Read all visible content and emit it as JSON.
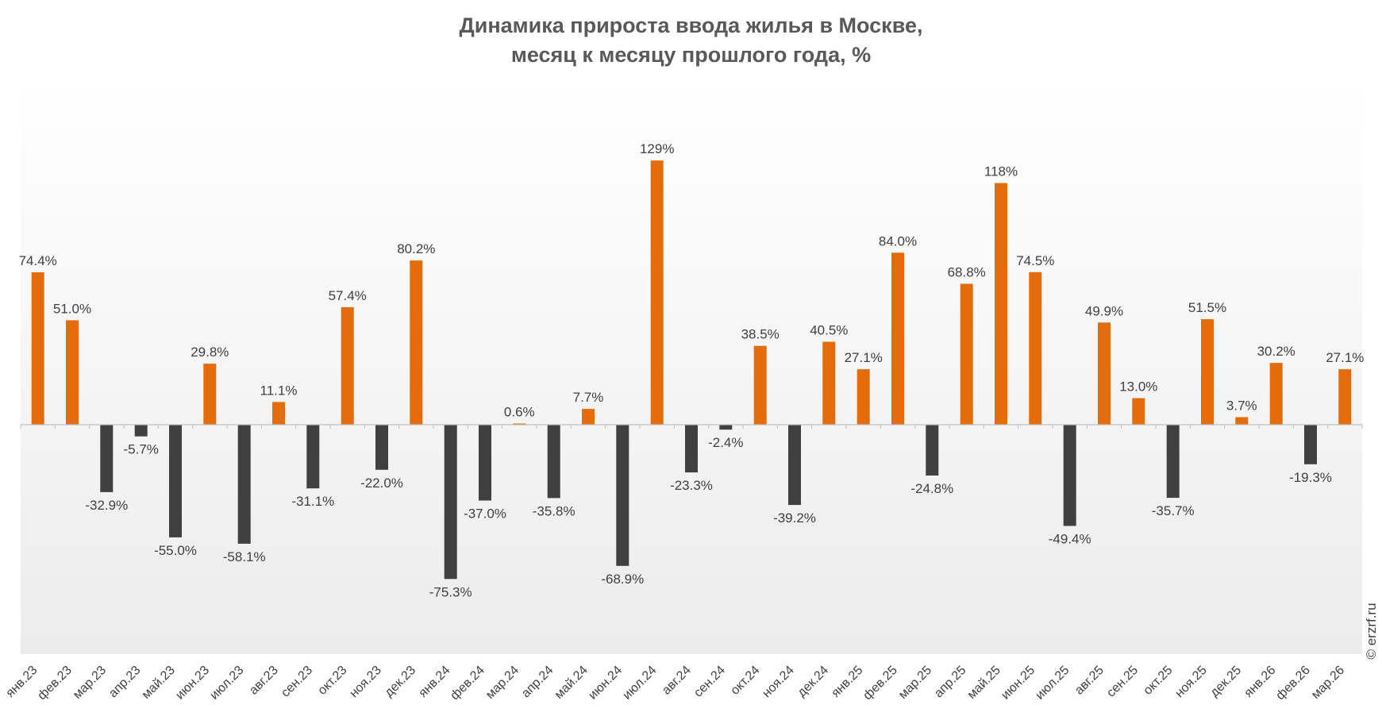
{
  "title_lines": [
    "Динамика прироста ввода жилья в Москве,",
    "месяц к месяцу прошлого года, %"
  ],
  "watermark": "© erzrf.ru",
  "colors": {
    "positive": "#E46C0A",
    "negative": "#404040",
    "label": "#404040",
    "axis": "#BFBFBF"
  },
  "chart_data": {
    "type": "bar",
    "title": "Динамика прироста ввода жилья в Москве, месяц к месяцу прошлого года, %",
    "xlabel": "",
    "ylabel": "",
    "ylim": [
      -95,
      150
    ],
    "grid": false,
    "legend": "none",
    "categories": [
      "янв.23",
      "фев.23",
      "мар.23",
      "апр.23",
      "май.23",
      "июн.23",
      "июл.23",
      "авг.23",
      "сен.23",
      "окт.23",
      "ноя.23",
      "дек.23",
      "янв.24",
      "фев.24",
      "мар.24",
      "апр.24",
      "май.24",
      "июн.24",
      "июл.24",
      "авг.24",
      "сен.24",
      "окт.24",
      "ноя.24",
      "дек.24",
      "янв.25",
      "фев.25",
      "мар.25",
      "апр.25",
      "май.25",
      "июн.25",
      "июл.25",
      "авг.25",
      "сен.25",
      "окт.25",
      "ноя.25",
      "дек.25",
      "янв.26",
      "фев.26",
      "мар.26"
    ],
    "values": [
      74.4,
      51.0,
      -32.9,
      -5.7,
      -55.0,
      29.8,
      -58.1,
      11.1,
      -31.1,
      57.4,
      -22.0,
      80.2,
      -75.3,
      -37.0,
      0.6,
      -35.8,
      7.7,
      -68.9,
      129,
      -23.3,
      -2.4,
      38.5,
      -39.2,
      40.5,
      27.1,
      84.0,
      -24.8,
      68.8,
      118,
      74.5,
      -49.4,
      49.9,
      13.0,
      -35.7,
      51.5,
      3.7,
      30.2,
      -19.3,
      27.1
    ],
    "data_labels": [
      "74.4%",
      "51.0%",
      "-32.9%",
      "-5.7%",
      "-55.0%",
      "29.8%",
      "-58.1%",
      "11.1%",
      "-31.1%",
      "57.4%",
      "-22.0%",
      "80.2%",
      "-75.3%",
      "-37.0%",
      "0.6%",
      "-35.8%",
      "7.7%",
      "-68.9%",
      "129%",
      "-23.3%",
      "-2.4%",
      "38.5%",
      "-39.2%",
      "40.5%",
      "27.1%",
      "84.0%",
      "-24.8%",
      "68.8%",
      "118%",
      "74.5%",
      "-49.4%",
      "49.9%",
      "13.0%",
      "-35.7%",
      "51.5%",
      "3.7%",
      "30.2%",
      "-19.3%",
      "27.1%"
    ]
  }
}
